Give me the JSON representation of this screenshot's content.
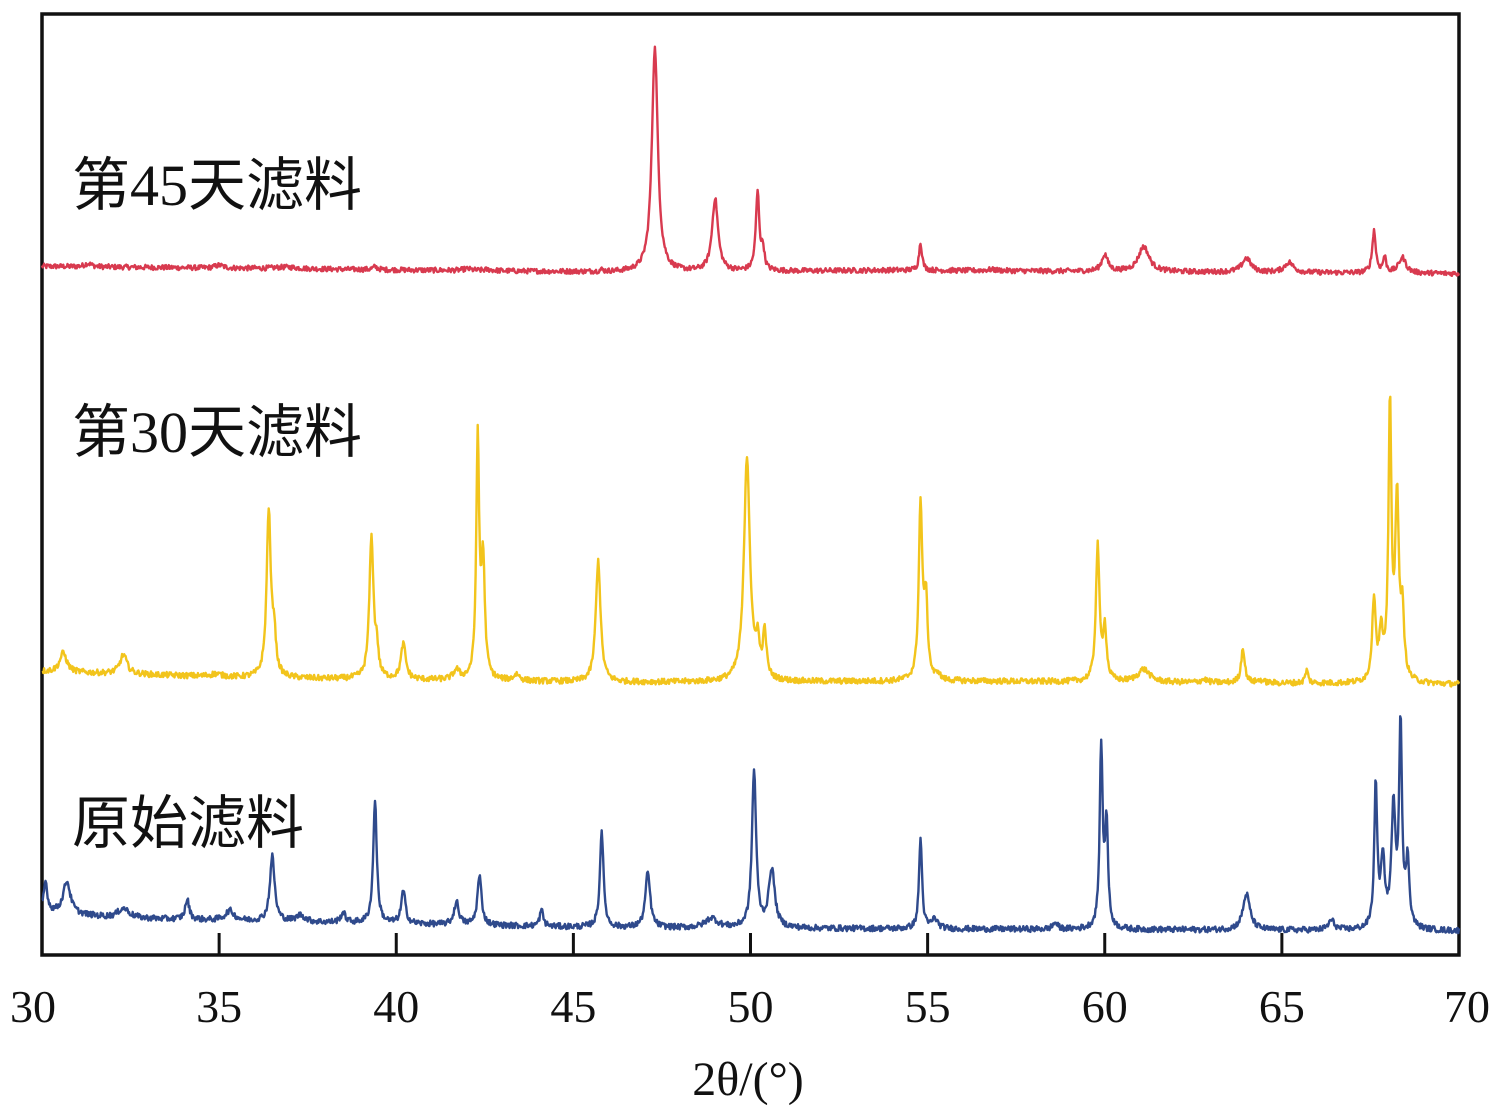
{
  "chart_data": {
    "type": "line",
    "xlabel": "2θ/(°)",
    "xlim": [
      30,
      70
    ],
    "x_ticks": [
      "30",
      "35",
      "40",
      "45",
      "50",
      "55",
      "60",
      "65",
      "70"
    ],
    "y_ticks_shown": false,
    "grid": false,
    "legend": "none",
    "series": [
      {
        "name": "第45天滤料",
        "color": "#d83a4f",
        "baseline": [
          [
            30,
            0.53
          ],
          [
            47,
            0.42
          ],
          [
            54,
            0.46
          ],
          [
            70,
            0.4
          ]
        ],
        "peaks": [
          [
            31.3,
            0.06,
            0.12
          ],
          [
            35.0,
            0.05,
            0.15
          ],
          [
            36.9,
            0.03,
            0.4
          ],
          [
            39.4,
            0.05,
            0.08
          ],
          [
            42.0,
            0.03,
            0.15
          ],
          [
            42.6,
            0.02,
            0.15
          ],
          [
            45.8,
            0.03,
            0.05
          ],
          [
            47.3,
            4.0,
            0.1
          ],
          [
            49.0,
            1.3,
            0.1
          ],
          [
            50.2,
            1.4,
            0.06
          ],
          [
            50.35,
            0.35,
            0.05
          ],
          [
            54.8,
            0.5,
            0.05
          ],
          [
            56.8,
            0.02,
            0.2
          ],
          [
            60.0,
            0.3,
            0.1
          ],
          [
            61.1,
            0.45,
            0.18
          ],
          [
            64.0,
            0.25,
            0.15
          ],
          [
            65.2,
            0.18,
            0.15
          ],
          [
            67.6,
            0.75,
            0.06
          ],
          [
            67.9,
            0.28,
            0.05
          ],
          [
            68.4,
            0.28,
            0.12
          ]
        ]
      },
      {
        "name": "第30天滤料",
        "color": "#f2c41c",
        "baseline": [
          [
            30,
            0.35
          ],
          [
            36,
            0.25
          ],
          [
            46,
            0.18
          ],
          [
            56,
            0.2
          ],
          [
            70,
            0.15
          ]
        ],
        "peaks": [
          [
            30.6,
            0.3,
            0.12
          ],
          [
            32.3,
            0.3,
            0.12
          ],
          [
            34.9,
            0.04,
            0.2
          ],
          [
            36.4,
            2.6,
            0.07
          ],
          [
            36.55,
            0.6,
            0.06
          ],
          [
            39.3,
            2.2,
            0.07
          ],
          [
            39.45,
            0.4,
            0.05
          ],
          [
            40.2,
            0.55,
            0.08
          ],
          [
            41.7,
            0.15,
            0.1
          ],
          [
            42.3,
            3.7,
            0.05
          ],
          [
            42.45,
            1.8,
            0.06
          ],
          [
            43.4,
            0.1,
            0.1
          ],
          [
            45.7,
            1.9,
            0.08
          ],
          [
            49.9,
            3.5,
            0.1
          ],
          [
            50.2,
            0.5,
            0.06
          ],
          [
            50.4,
            0.7,
            0.06
          ],
          [
            54.8,
            2.7,
            0.06
          ],
          [
            54.95,
            1.2,
            0.06
          ],
          [
            55.3,
            0.1,
            0.05
          ],
          [
            59.8,
            2.1,
            0.06
          ],
          [
            60.0,
            0.8,
            0.06
          ],
          [
            61.1,
            0.2,
            0.2
          ],
          [
            62.8,
            0.05,
            0.1
          ],
          [
            63.9,
            0.55,
            0.06
          ],
          [
            64.4,
            0.04,
            0.1
          ],
          [
            65.7,
            0.2,
            0.05
          ],
          [
            67.6,
            1.3,
            0.06
          ],
          [
            67.8,
            0.7,
            0.06
          ],
          [
            68.05,
            4.3,
            0.05
          ],
          [
            68.25,
            2.8,
            0.06
          ],
          [
            68.4,
            1.0,
            0.06
          ]
        ]
      },
      {
        "name": "原始滤料",
        "color": "#2f4a8c",
        "baseline": [
          [
            30,
            0.3
          ],
          [
            32,
            0.2
          ],
          [
            36,
            0.15
          ],
          [
            46,
            0.05
          ],
          [
            56,
            0.03
          ],
          [
            70,
            0.0
          ]
        ],
        "peaks": [
          [
            30.1,
            0.45,
            0.06
          ],
          [
            30.7,
            0.5,
            0.12
          ],
          [
            32.3,
            0.15,
            0.2
          ],
          [
            34.1,
            0.3,
            0.07
          ],
          [
            35.3,
            0.15,
            0.15
          ],
          [
            36.5,
            1.0,
            0.08
          ],
          [
            37.3,
            0.1,
            0.15
          ],
          [
            38.5,
            0.15,
            0.08
          ],
          [
            39.4,
            1.9,
            0.06
          ],
          [
            40.2,
            0.5,
            0.07
          ],
          [
            41.7,
            0.35,
            0.08
          ],
          [
            42.35,
            0.75,
            0.07
          ],
          [
            44.1,
            0.25,
            0.06
          ],
          [
            45.8,
            1.5,
            0.06
          ],
          [
            47.1,
            0.85,
            0.08
          ],
          [
            48.9,
            0.15,
            0.2
          ],
          [
            50.1,
            2.4,
            0.07
          ],
          [
            50.6,
            0.9,
            0.1
          ],
          [
            54.8,
            1.4,
            0.05
          ],
          [
            55.2,
            0.15,
            0.1
          ],
          [
            58.6,
            0.1,
            0.08
          ],
          [
            59.9,
            2.8,
            0.05
          ],
          [
            60.05,
            1.6,
            0.05
          ],
          [
            64.0,
            0.55,
            0.12
          ],
          [
            66.4,
            0.15,
            0.1
          ],
          [
            67.65,
            2.2,
            0.05
          ],
          [
            67.85,
            1.0,
            0.07
          ],
          [
            68.15,
            1.8,
            0.07
          ],
          [
            68.35,
            3.1,
            0.05
          ],
          [
            68.55,
            1.0,
            0.06
          ]
        ]
      }
    ]
  }
}
